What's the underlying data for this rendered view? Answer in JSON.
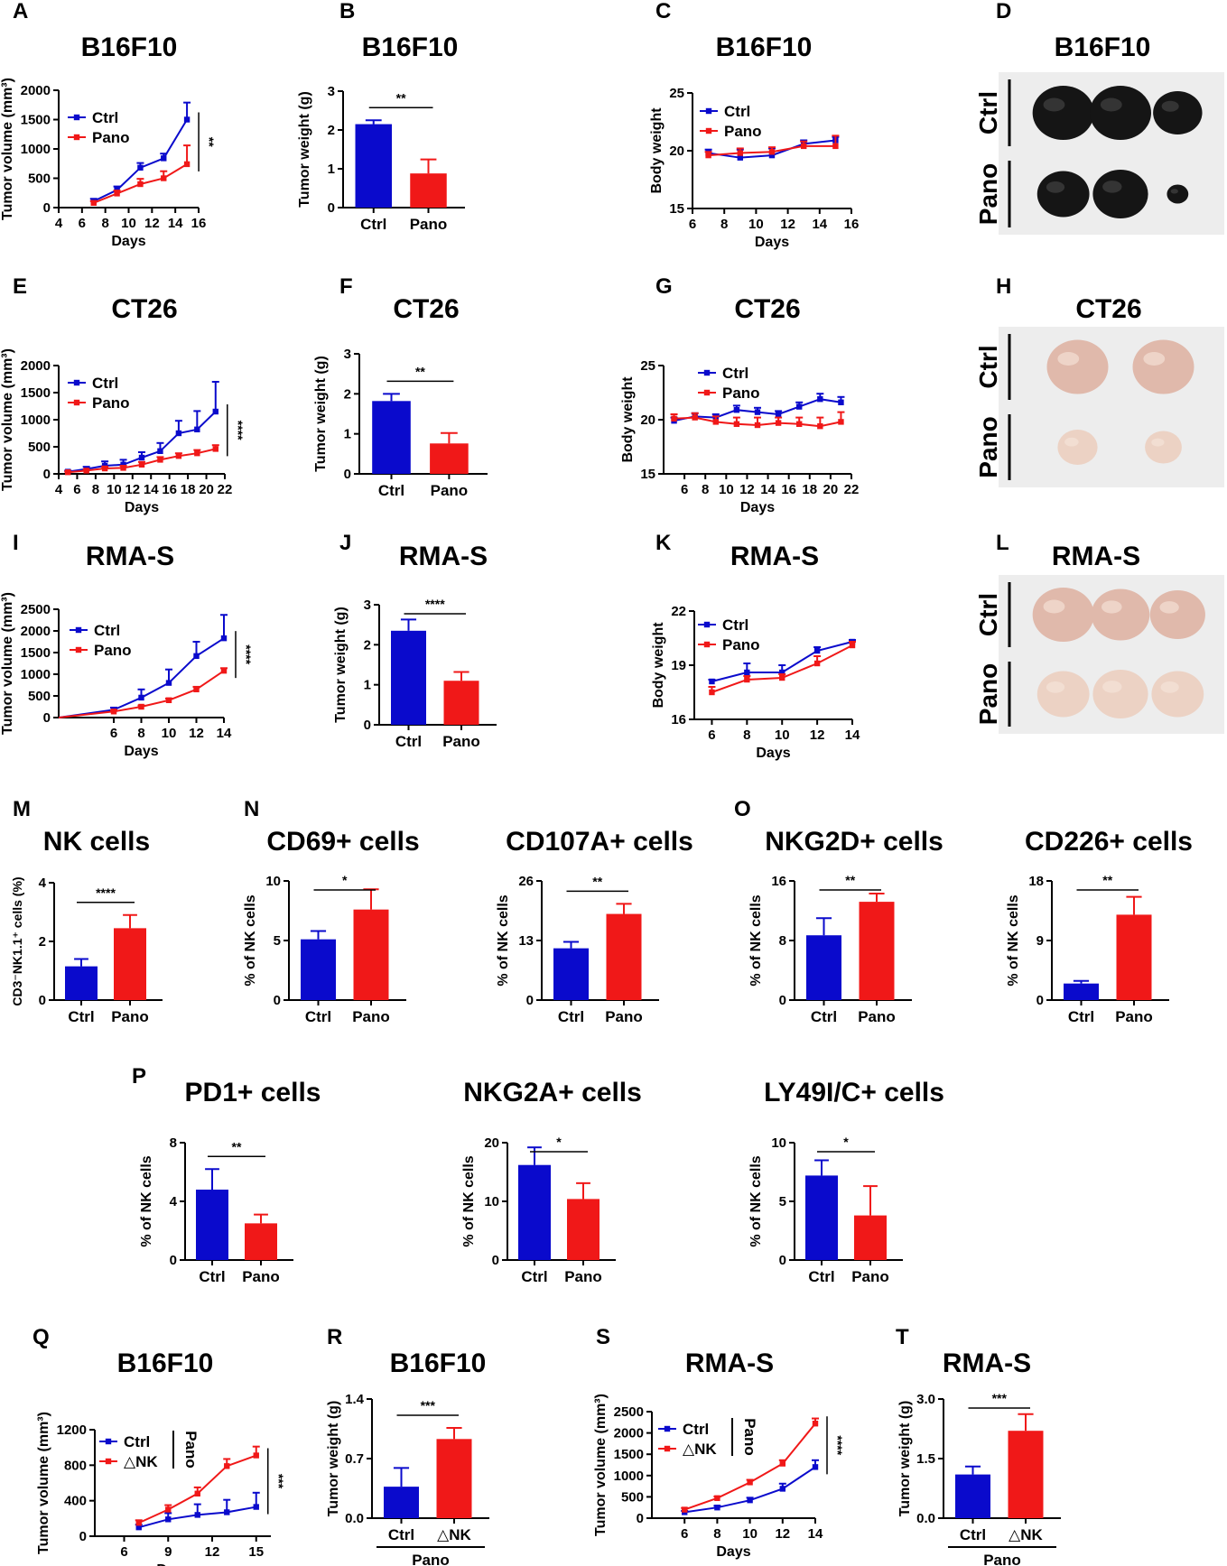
{
  "figure": {
    "colors": {
      "ctrl": "#0a0acc",
      "treat": "#f01818",
      "axis": "#000000"
    }
  },
  "chart_data": [
    {
      "id": "A",
      "panel_label": "A",
      "type": "line",
      "title": "B16F10",
      "xlabel": "Days",
      "ylabel": "Tumor volume (mm³)",
      "xlim": [
        4,
        16
      ],
      "ylim": [
        0,
        2000
      ],
      "xticks": [
        4,
        6,
        8,
        10,
        12,
        14,
        16
      ],
      "yticks": [
        0,
        500,
        1000,
        1500,
        2000
      ],
      "series": [
        {
          "name": "Ctrl",
          "color": "#0a0acc",
          "x": [
            7,
            9,
            11,
            13,
            15
          ],
          "y": [
            110,
            300,
            680,
            840,
            1500
          ],
          "err": [
            40,
            60,
            80,
            80,
            290
          ]
        },
        {
          "name": "Pano",
          "color": "#f01818",
          "x": [
            7,
            9,
            11,
            13,
            15
          ],
          "y": [
            80,
            240,
            400,
            500,
            740
          ],
          "err": [
            30,
            50,
            90,
            120,
            320
          ]
        }
      ],
      "significance": "**"
    },
    {
      "id": "B",
      "panel_label": "B",
      "type": "bar",
      "title": "B16F10",
      "ylabel": "Tumor weight (g)",
      "ylim": [
        0,
        3
      ],
      "yticks": [
        0,
        1,
        2,
        3
      ],
      "categories": [
        "Ctrl",
        "Pano"
      ],
      "values": [
        2.15,
        0.88
      ],
      "errors": [
        0.1,
        0.36
      ],
      "significance": "**"
    },
    {
      "id": "C",
      "panel_label": "C",
      "type": "line",
      "title": "B16F10",
      "xlabel": "Days",
      "ylabel": "Body weight",
      "xlim": [
        6,
        16
      ],
      "ylim": [
        15,
        25
      ],
      "xticks": [
        6,
        8,
        10,
        12,
        14,
        16
      ],
      "yticks": [
        15,
        20,
        25
      ],
      "series": [
        {
          "name": "Ctrl",
          "color": "#0a0acc",
          "x": [
            7,
            9,
            11,
            13,
            15
          ],
          "y": [
            19.8,
            19.4,
            19.6,
            20.6,
            20.9
          ],
          "err": [
            0.3,
            0.7,
            0.6,
            0.3,
            0.3
          ]
        },
        {
          "name": "Pano",
          "color": "#f01818",
          "x": [
            7,
            9,
            11,
            13,
            15
          ],
          "y": [
            19.6,
            19.8,
            19.9,
            20.4,
            20.4
          ],
          "err": [
            0.3,
            0.4,
            0.4,
            0.4,
            0.9
          ]
        }
      ]
    },
    {
      "id": "E",
      "panel_label": "E",
      "type": "line",
      "title": "CT26",
      "xlabel": "Days",
      "ylabel": "Tumor volume (mm³)",
      "xlim": [
        4,
        22
      ],
      "ylim": [
        0,
        2000
      ],
      "xticks": [
        4,
        6,
        8,
        10,
        12,
        14,
        16,
        18,
        20,
        22
      ],
      "yticks": [
        0,
        500,
        1000,
        1500,
        2000
      ],
      "series": [
        {
          "name": "Ctrl",
          "color": "#0a0acc",
          "x": [
            5,
            7,
            9,
            11,
            13,
            15,
            17,
            19,
            21
          ],
          "y": [
            40,
            90,
            150,
            170,
            300,
            420,
            750,
            820,
            1150
          ],
          "err": [
            20,
            40,
            80,
            90,
            100,
            150,
            230,
            340,
            550
          ]
        },
        {
          "name": "Pano",
          "color": "#f01818",
          "x": [
            5,
            7,
            9,
            11,
            13,
            15,
            17,
            19,
            21
          ],
          "y": [
            30,
            60,
            100,
            110,
            170,
            260,
            330,
            380,
            460
          ],
          "err": [
            10,
            20,
            30,
            40,
            50,
            50,
            50,
            60,
            70
          ]
        }
      ],
      "significance": "****"
    },
    {
      "id": "F",
      "panel_label": "F",
      "type": "bar",
      "title": "CT26",
      "ylabel": "Tumor weight (g)",
      "ylim": [
        0,
        3
      ],
      "yticks": [
        0,
        1,
        2,
        3
      ],
      "categories": [
        "Ctrl",
        "Pano"
      ],
      "values": [
        1.82,
        0.76
      ],
      "errors": [
        0.18,
        0.26
      ],
      "significance": "**"
    },
    {
      "id": "G",
      "panel_label": "G",
      "type": "line",
      "title": "CT26",
      "xlabel": "Days",
      "ylabel": "Body weight",
      "xlim": [
        4,
        22
      ],
      "ylim": [
        15,
        25
      ],
      "xticks": [
        6,
        8,
        10,
        12,
        14,
        16,
        18,
        20,
        22
      ],
      "yticks": [
        15,
        20,
        25
      ],
      "series": [
        {
          "name": "Ctrl",
          "color": "#0a0acc",
          "x": [
            5,
            7,
            9,
            11,
            13,
            15,
            17,
            19,
            21
          ],
          "y": [
            19.9,
            20.3,
            20.2,
            20.9,
            20.7,
            20.5,
            21.2,
            21.9,
            21.6
          ],
          "err": [
            0.3,
            0.3,
            0.3,
            0.4,
            0.4,
            0.3,
            0.4,
            0.5,
            0.5
          ]
        },
        {
          "name": "Pano",
          "color": "#f01818",
          "x": [
            5,
            7,
            9,
            11,
            13,
            15,
            17,
            19,
            21
          ],
          "y": [
            20.1,
            20.2,
            19.8,
            19.6,
            19.5,
            19.7,
            19.6,
            19.4,
            19.8
          ],
          "err": [
            0.4,
            0.4,
            0.5,
            0.6,
            0.7,
            0.5,
            0.6,
            0.8,
            0.9
          ]
        }
      ]
    },
    {
      "id": "I",
      "panel_label": "I",
      "type": "line",
      "title": "RMA-S",
      "xlabel": "Days",
      "ylabel": "Tumor volume (mm³)",
      "xlim": [
        2,
        14
      ],
      "ylim": [
        0,
        2500
      ],
      "xticks": [
        6,
        8,
        10,
        12,
        14
      ],
      "yticks": [
        0,
        500,
        1000,
        1500,
        2000,
        2500
      ],
      "series": [
        {
          "name": "Ctrl",
          "color": "#0a0acc",
          "x": [
            2,
            6,
            8,
            10,
            12,
            14
          ],
          "y": [
            0,
            180,
            460,
            800,
            1420,
            1830
          ],
          "err": [
            0,
            50,
            190,
            310,
            330,
            540
          ]
        },
        {
          "name": "Pano",
          "color": "#f01818",
          "x": [
            2,
            6,
            8,
            10,
            12,
            14
          ],
          "y": [
            0,
            140,
            250,
            400,
            650,
            1080
          ],
          "err": [
            0,
            30,
            30,
            40,
            60,
            60
          ]
        }
      ],
      "significance": "****"
    },
    {
      "id": "J",
      "panel_label": "J",
      "type": "bar",
      "title": "RMA-S",
      "ylabel": "Tumor weight (g)",
      "ylim": [
        0,
        3
      ],
      "yticks": [
        0,
        1,
        2,
        3
      ],
      "categories": [
        "Ctrl",
        "Pano"
      ],
      "values": [
        2.35,
        1.1
      ],
      "errors": [
        0.28,
        0.22
      ],
      "significance": "****"
    },
    {
      "id": "K",
      "panel_label": "K",
      "type": "line",
      "title": "RMA-S",
      "xlabel": "Days",
      "ylabel": "Body weight",
      "xlim": [
        5,
        14
      ],
      "ylim": [
        16,
        22
      ],
      "xticks": [
        6,
        8,
        10,
        12,
        14
      ],
      "yticks": [
        16,
        19,
        22
      ],
      "series": [
        {
          "name": "Ctrl",
          "color": "#0a0acc",
          "x": [
            6,
            8,
            10,
            12,
            14
          ],
          "y": [
            18.1,
            18.6,
            18.6,
            19.8,
            20.3
          ],
          "err": [
            0.1,
            0.5,
            0.4,
            0.2,
            0.1
          ]
        },
        {
          "name": "Pano",
          "color": "#f01818",
          "x": [
            6,
            8,
            10,
            12,
            14
          ],
          "y": [
            17.5,
            18.2,
            18.3,
            19.1,
            20.1
          ],
          "err": [
            0.3,
            0.2,
            0.2,
            0.4,
            0.2
          ]
        }
      ]
    },
    {
      "id": "M",
      "panel_label": "M",
      "type": "bar",
      "title": "NK cells",
      "ylabel": "CD3⁻NK1.1⁺ cells (%)",
      "ylim": [
        0,
        4
      ],
      "yticks": [
        0,
        2,
        4
      ],
      "categories": [
        "Ctrl",
        "Pano"
      ],
      "values": [
        1.15,
        2.45
      ],
      "errors": [
        0.25,
        0.45
      ],
      "significance": "****"
    },
    {
      "id": "N1",
      "panel_label": "N",
      "type": "bar",
      "title": "CD69+ cells",
      "ylabel": "% of NK cells",
      "ylim": [
        0,
        10
      ],
      "yticks": [
        0,
        5,
        10
      ],
      "categories": [
        "Ctrl",
        "Pano"
      ],
      "values": [
        5.1,
        7.6
      ],
      "errors": [
        0.7,
        1.7
      ],
      "significance": "*"
    },
    {
      "id": "N2",
      "panel_label": "",
      "type": "bar",
      "title": "CD107A+ cells",
      "ylabel": "% of NK cells",
      "ylim": [
        0,
        26
      ],
      "yticks": [
        0,
        13,
        26
      ],
      "categories": [
        "Ctrl",
        "Pano"
      ],
      "values": [
        11.3,
        18.8
      ],
      "errors": [
        1.4,
        2.2
      ],
      "significance": "**"
    },
    {
      "id": "O1",
      "panel_label": "O",
      "type": "bar",
      "title": "NKG2D+ cells",
      "ylabel": "% of NK cells",
      "ylim": [
        0,
        16
      ],
      "yticks": [
        0,
        8,
        16
      ],
      "categories": [
        "Ctrl",
        "Pano"
      ],
      "values": [
        8.7,
        13.2
      ],
      "errors": [
        2.3,
        1.1
      ],
      "significance": "**"
    },
    {
      "id": "O2",
      "panel_label": "",
      "type": "bar",
      "title": "CD226+ cells",
      "ylabel": "% of NK cells",
      "ylim": [
        0,
        18
      ],
      "yticks": [
        0,
        9,
        18
      ],
      "categories": [
        "Ctrl",
        "Pano"
      ],
      "values": [
        2.5,
        12.9
      ],
      "errors": [
        0.4,
        2.7
      ],
      "significance": "**"
    },
    {
      "id": "P1",
      "panel_label": "P",
      "type": "bar",
      "title": "PD1+ cells",
      "ylabel": "% of NK cells",
      "ylim": [
        0,
        8
      ],
      "yticks": [
        0,
        4,
        8
      ],
      "categories": [
        "Ctrl",
        "Pano"
      ],
      "values": [
        4.8,
        2.5
      ],
      "errors": [
        1.4,
        0.6
      ],
      "significance": "**"
    },
    {
      "id": "P2",
      "panel_label": "",
      "type": "bar",
      "title": "NKG2A+ cells",
      "ylabel": "% of NK cells",
      "ylim": [
        0,
        20
      ],
      "yticks": [
        0,
        10,
        20
      ],
      "categories": [
        "Ctrl",
        "Pano"
      ],
      "values": [
        16.2,
        10.4
      ],
      "errors": [
        3,
        2.7
      ],
      "significance": "*"
    },
    {
      "id": "P3",
      "panel_label": "",
      "type": "bar",
      "title": "LY49I/C+ cells",
      "ylabel": "% of NK cells",
      "ylim": [
        0,
        10
      ],
      "yticks": [
        0,
        5,
        10
      ],
      "categories": [
        "Ctrl",
        "Pano"
      ],
      "values": [
        7.2,
        3.8
      ],
      "errors": [
        1.3,
        2.5
      ],
      "significance": "*"
    },
    {
      "id": "Q",
      "panel_label": "Q",
      "type": "line",
      "title": "B16F10",
      "xlabel": "Days",
      "ylabel": "Tumor volume (mm³)",
      "xlim": [
        4,
        16
      ],
      "ylim": [
        0,
        1200
      ],
      "xticks": [
        6,
        9,
        12,
        15
      ],
      "yticks": [
        0,
        400,
        800,
        1200
      ],
      "legend_group": "Pano",
      "series": [
        {
          "name": "Ctrl",
          "color": "#0a0acc",
          "x": [
            7,
            9,
            11,
            13,
            15
          ],
          "y": [
            100,
            190,
            240,
            270,
            330
          ],
          "err": [
            30,
            70,
            120,
            140,
            160
          ]
        },
        {
          "name": "△NK",
          "color": "#f01818",
          "x": [
            7,
            9,
            11,
            13,
            15
          ],
          "y": [
            150,
            300,
            480,
            790,
            910
          ],
          "err": [
            30,
            50,
            70,
            80,
            100
          ]
        }
      ],
      "significance": "***"
    },
    {
      "id": "R",
      "panel_label": "R",
      "type": "bar",
      "title": "B16F10",
      "ylabel": "Tumor weight (g)",
      "ylim": [
        0,
        1.4
      ],
      "yticks": [
        0.0,
        0.7,
        1.4
      ],
      "categories": [
        "Ctrl",
        "△NK"
      ],
      "values": [
        0.37,
        0.93
      ],
      "errors": [
        0.22,
        0.13
      ],
      "significance": "***",
      "group_label": "Pano"
    },
    {
      "id": "S",
      "panel_label": "S",
      "type": "line",
      "title": "RMA-S",
      "xlabel": "Days",
      "ylabel": "Tumor volume (mm³)",
      "xlim": [
        4,
        14
      ],
      "ylim": [
        0,
        2500
      ],
      "xticks": [
        6,
        8,
        10,
        12,
        14
      ],
      "yticks": [
        0,
        500,
        1000,
        1500,
        2000,
        2500
      ],
      "legend_group": "Pano",
      "series": [
        {
          "name": "Ctrl",
          "color": "#0a0acc",
          "x": [
            6,
            8,
            10,
            12,
            14
          ],
          "y": [
            140,
            250,
            420,
            690,
            1200
          ],
          "err": [
            30,
            40,
            60,
            120,
            160
          ]
        },
        {
          "name": "△NK",
          "color": "#f01818",
          "x": [
            6,
            8,
            10,
            12,
            14
          ],
          "y": [
            200,
            470,
            840,
            1280,
            2220
          ],
          "err": [
            40,
            40,
            60,
            80,
            120
          ]
        }
      ],
      "significance": "****"
    },
    {
      "id": "T",
      "panel_label": "T",
      "type": "bar",
      "title": "RMA-S",
      "ylabel": "Tumor weight (g)",
      "ylim": [
        0,
        3.0
      ],
      "yticks": [
        0.0,
        1.5,
        3.0
      ],
      "categories": [
        "Ctrl",
        "△NK"
      ],
      "values": [
        1.1,
        2.2
      ],
      "errors": [
        0.2,
        0.42
      ],
      "significance": "***",
      "group_label": "Pano"
    }
  ],
  "photos": [
    {
      "id": "D",
      "panel_label": "D",
      "title": "B16F10",
      "rows": [
        "Ctrl",
        "Pano"
      ],
      "tumor_tone": "dark",
      "tumors": {
        "Ctrl": [
          1.0,
          1.0,
          0.8
        ],
        "Pano": [
          0.85,
          0.9,
          0.35
        ]
      }
    },
    {
      "id": "H",
      "panel_label": "H",
      "title": "CT26",
      "rows": [
        "Ctrl",
        "Pano"
      ],
      "tumor_tone": "pink",
      "tumors": {
        "Ctrl": [
          1.0,
          1.0
        ],
        "Pano": [
          0.65,
          0.6
        ]
      }
    },
    {
      "id": "L",
      "panel_label": "L",
      "title": "RMA-S",
      "rows": [
        "Ctrl",
        "Pano"
      ],
      "tumor_tone": "pink",
      "tumors": {
        "Ctrl": [
          1.0,
          0.95,
          0.9
        ],
        "Pano": [
          0.85,
          0.9,
          0.85
        ]
      }
    }
  ]
}
